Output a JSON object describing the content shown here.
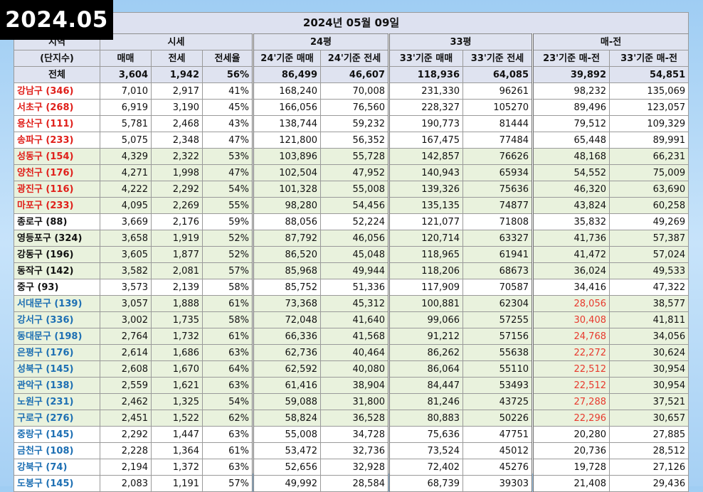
{
  "badge": "2024.05",
  "title": "2024년 05월 09일",
  "groups": [
    "지역",
    "시세",
    "24평",
    "33평",
    "매-전"
  ],
  "columns": [
    "(단지수)",
    "매매",
    "전세",
    "전세율",
    "24'기준 매매",
    "24'기준 전세",
    "33'기준 매매",
    "33'기준 전세",
    "23'기준 매-전",
    "33'기준 매-전"
  ],
  "total": [
    "전체",
    "3,604",
    "1,942",
    "56%",
    "86,499",
    "46,607",
    "118,936",
    "64,085",
    "39,892",
    "54,851"
  ],
  "rows": [
    [
      "강남구 (346)",
      "7,010",
      "2,917",
      "41%",
      "168,240",
      "70,008",
      "231,330",
      "96261",
      "98,232",
      "135,069"
    ],
    [
      "서초구 (268)",
      "6,919",
      "3,190",
      "45%",
      "166,056",
      "76,560",
      "228,327",
      "105270",
      "89,496",
      "123,057"
    ],
    [
      "용산구 (111)",
      "5,781",
      "2,468",
      "43%",
      "138,744",
      "59,232",
      "190,773",
      "81444",
      "79,512",
      "109,329"
    ],
    [
      "송파구 (233)",
      "5,075",
      "2,348",
      "47%",
      "121,800",
      "56,352",
      "167,475",
      "77484",
      "65,448",
      "89,991"
    ],
    [
      "성동구 (154)",
      "4,329",
      "2,322",
      "53%",
      "103,896",
      "55,728",
      "142,857",
      "76626",
      "48,168",
      "66,231"
    ],
    [
      "양천구 (176)",
      "4,271",
      "1,998",
      "47%",
      "102,504",
      "47,952",
      "140,943",
      "65934",
      "54,552",
      "75,009"
    ],
    [
      "광진구 (116)",
      "4,222",
      "2,292",
      "54%",
      "101,328",
      "55,008",
      "139,326",
      "75636",
      "46,320",
      "63,690"
    ],
    [
      "마포구 (233)",
      "4,095",
      "2,269",
      "55%",
      "98,280",
      "54,456",
      "135,135",
      "74877",
      "43,824",
      "60,258"
    ],
    [
      "종로구 (88)",
      "3,669",
      "2,176",
      "59%",
      "88,056",
      "52,224",
      "121,077",
      "71808",
      "35,832",
      "49,269"
    ],
    [
      "영등포구 (324)",
      "3,658",
      "1,919",
      "52%",
      "87,792",
      "46,056",
      "120,714",
      "63327",
      "41,736",
      "57,387"
    ],
    [
      "강동구 (196)",
      "3,605",
      "1,877",
      "52%",
      "86,520",
      "45,048",
      "118,965",
      "61941",
      "41,472",
      "57,024"
    ],
    [
      "동작구 (142)",
      "3,582",
      "2,081",
      "57%",
      "85,968",
      "49,944",
      "118,206",
      "68673",
      "36,024",
      "49,533"
    ],
    [
      "중구 (93)",
      "3,573",
      "2,139",
      "58%",
      "85,752",
      "51,336",
      "117,909",
      "70587",
      "34,416",
      "47,322"
    ],
    [
      "서대문구 (139)",
      "3,057",
      "1,888",
      "61%",
      "73,368",
      "45,312",
      "100,881",
      "62304",
      "28,056",
      "38,577"
    ],
    [
      "강서구 (336)",
      "3,002",
      "1,735",
      "58%",
      "72,048",
      "41,640",
      "99,066",
      "57255",
      "30,408",
      "41,811"
    ],
    [
      "동대문구 (198)",
      "2,764",
      "1,732",
      "61%",
      "66,336",
      "41,568",
      "91,212",
      "57156",
      "24,768",
      "34,056"
    ],
    [
      "은평구 (176)",
      "2,614",
      "1,686",
      "63%",
      "62,736",
      "40,464",
      "86,262",
      "55638",
      "22,272",
      "30,624"
    ],
    [
      "성북구 (145)",
      "2,608",
      "1,670",
      "64%",
      "62,592",
      "40,080",
      "86,064",
      "55110",
      "22,512",
      "30,954"
    ],
    [
      "관악구 (138)",
      "2,559",
      "1,621",
      "63%",
      "61,416",
      "38,904",
      "84,447",
      "53493",
      "22,512",
      "30,954"
    ],
    [
      "노원구 (231)",
      "2,462",
      "1,325",
      "54%",
      "59,088",
      "31,800",
      "81,246",
      "43725",
      "27,288",
      "37,521"
    ],
    [
      "구로구 (276)",
      "2,451",
      "1,522",
      "62%",
      "58,824",
      "36,528",
      "80,883",
      "50226",
      "22,296",
      "30,657"
    ],
    [
      "중랑구 (145)",
      "2,292",
      "1,447",
      "63%",
      "55,008",
      "34,728",
      "75,636",
      "47751",
      "20,280",
      "27,885"
    ],
    [
      "금천구 (108)",
      "2,228",
      "1,364",
      "61%",
      "53,472",
      "32,736",
      "73,524",
      "45012",
      "20,736",
      "28,512"
    ],
    [
      "강북구 (74)",
      "2,194",
      "1,372",
      "63%",
      "52,656",
      "32,928",
      "72,402",
      "45276",
      "19,728",
      "27,126"
    ],
    [
      "도봉구 (145)",
      "2,083",
      "1,191",
      "57%",
      "49,992",
      "28,584",
      "68,739",
      "39303",
      "21,408",
      "29,436"
    ]
  ],
  "row_styles": {
    "name_colors": [
      "red",
      "red",
      "red",
      "red",
      "red",
      "red",
      "red",
      "red",
      "black",
      "black",
      "black",
      "black",
      "black",
      "blue",
      "blue",
      "blue",
      "blue",
      "blue",
      "blue",
      "blue",
      "blue",
      "blue",
      "blue",
      "blue",
      "blue"
    ],
    "shaded": [
      false,
      false,
      false,
      false,
      true,
      true,
      true,
      true,
      false,
      true,
      true,
      true,
      false,
      true,
      true,
      true,
      true,
      true,
      true,
      true,
      true,
      false,
      false,
      false,
      false
    ],
    "red_value_rows": [
      13,
      14,
      15,
      16,
      17,
      18,
      19,
      20
    ]
  },
  "colors": {
    "red": "#e0201b",
    "blue": "#1d6fb3",
    "shade": "#e9f2dd",
    "header": "#dfe3f0",
    "negative_value": "#e8392d"
  }
}
